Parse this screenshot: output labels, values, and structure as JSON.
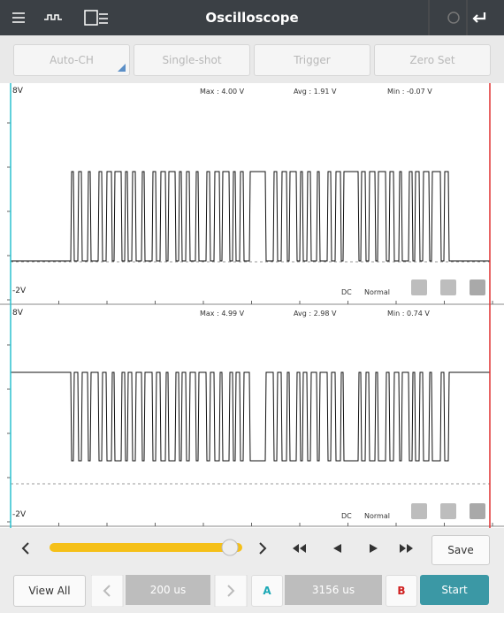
{
  "header": {
    "title": "Oscilloscope"
  },
  "toolbar": {
    "buttons": [
      "Auto-CH",
      "Single-shot",
      "Trigger",
      "Zero Set"
    ]
  },
  "channels": [
    {
      "top_label": "8V",
      "max": "Max : 4.00 V",
      "avg": "Avg : 1.91 V",
      "min": "Min : -0.07 V",
      "bottom_label": "-2V",
      "coupling": "DC",
      "mode": "Normal"
    },
    {
      "top_label": "8V",
      "max": "Max : 4.99 V",
      "avg": "Avg : 2.98 V",
      "min": "Min : 0.74 V",
      "bottom_label": "-2V",
      "coupling": "DC",
      "mode": "Normal"
    }
  ],
  "footer": {
    "save": "Save",
    "view_all": "View All",
    "timebase": "200 us",
    "cursor_a": "A",
    "cursor_delta": "3156 us",
    "cursor_b": "B",
    "start": "Start"
  }
}
